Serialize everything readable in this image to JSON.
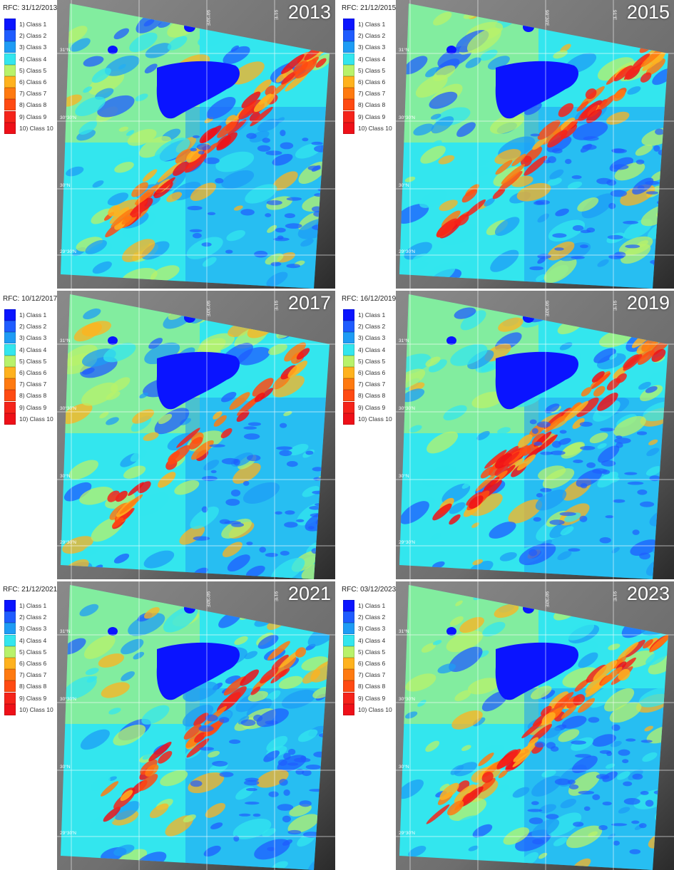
{
  "legend": [
    {
      "label": "1) Class 1",
      "color": "#0a14ff"
    },
    {
      "label": "2) Class 2",
      "color": "#1f5cff"
    },
    {
      "label": "3) Class 3",
      "color": "#1e9cf5"
    },
    {
      "label": "4) Class 4",
      "color": "#33e6ee"
    },
    {
      "label": "5) Class 5",
      "color": "#b8f26a"
    },
    {
      "label": "6) Class 6",
      "color": "#ffb21e"
    },
    {
      "label": "7) Class 7",
      "color": "#ff7a10"
    },
    {
      "label": "8) Class 8",
      "color": "#ff4a12"
    },
    {
      "label": "9) Class 9",
      "color": "#f5231a"
    },
    {
      "label": "10) Class 10",
      "color": "#ee1018"
    }
  ],
  "grid_labels": [
    "90°30'E",
    "91°E",
    "31°N",
    "30°30'N",
    "30°N",
    "29°30'N"
  ],
  "panels": [
    {
      "date": "RFC: 31/12/2013",
      "year": "2013",
      "hot": 1.0
    },
    {
      "date": "RFC: 21/12/2015",
      "year": "2015",
      "hot": 0.75
    },
    {
      "date": "RFC: 10/12/2017",
      "year": "2017",
      "hot": 0.55
    },
    {
      "date": "RFC: 16/12/2019",
      "year": "2019",
      "hot": 0.9
    },
    {
      "date": "RFC: 21/12/2021",
      "year": "2021",
      "hot": 0.5
    },
    {
      "date": "RFC: 03/12/2023",
      "year": "2023",
      "hot": 0.95
    }
  ]
}
